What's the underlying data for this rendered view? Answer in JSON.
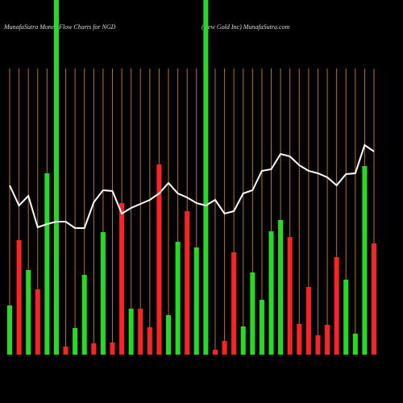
{
  "chart_data": {
    "type": "bar",
    "title": "MunafaSutra Money Flow Charts for NGD",
    "subtitle": "(New Gold Inc) MunafaSutra.com",
    "categories": [
      null,
      null,
      null,
      null,
      null,
      null,
      null,
      null,
      null,
      null,
      null,
      null,
      null,
      null,
      null,
      null,
      null,
      null,
      null,
      null,
      null,
      null,
      null,
      null,
      null,
      null,
      null,
      null,
      null,
      null,
      null,
      null,
      null,
      null,
      null,
      null,
      null,
      null,
      null,
      null
    ],
    "bars": {
      "values": [
        61,
        142,
        105,
        81,
        225,
        440,
        10,
        33,
        99,
        14,
        152,
        15,
        188,
        57,
        57,
        34,
        236,
        49,
        140,
        178,
        133,
        440,
        6,
        17,
        127,
        35,
        102,
        68,
        153,
        167,
        146,
        38,
        84,
        24,
        37,
        121,
        93,
        26,
        234,
        138
      ],
      "colors": [
        "#22dd22",
        "#ff2222",
        "#22dd22",
        "#ff2222",
        "#22dd22",
        "#22dd22",
        "#ff2222",
        "#22dd22",
        "#22dd22",
        "#ff2222",
        "#22dd22",
        "#ff2222",
        "#ff2222",
        "#22dd22",
        "#ff2222",
        "#ff2222",
        "#ff2222",
        "#22dd22",
        "#22dd22",
        "#ff2222",
        "#22dd22",
        "#22dd22",
        "#ff2222",
        "#ff2222",
        "#ff2222",
        "#22dd22",
        "#22dd22",
        "#22dd22",
        "#22dd22",
        "#22dd22",
        "#ff2222",
        "#ff2222",
        "#ff2222",
        "#ff2222",
        "#ff2222",
        "#ff2222",
        "#22dd22",
        "#22dd22",
        "#22dd22",
        "#ff2222"
      ]
    },
    "line": {
      "color": "#ffffff",
      "values": [
        210,
        185,
        197,
        158,
        162,
        165,
        165,
        157,
        157,
        189,
        204,
        203,
        175,
        182,
        187,
        192,
        200,
        213,
        200,
        195,
        188,
        185,
        192,
        175,
        178,
        200,
        204,
        228,
        230,
        249,
        246,
        235,
        228,
        225,
        220,
        210,
        224,
        225,
        260,
        252
      ]
    },
    "ylim": [
      0,
      440
    ],
    "grid": true,
    "grid_color": "#b8741a"
  }
}
